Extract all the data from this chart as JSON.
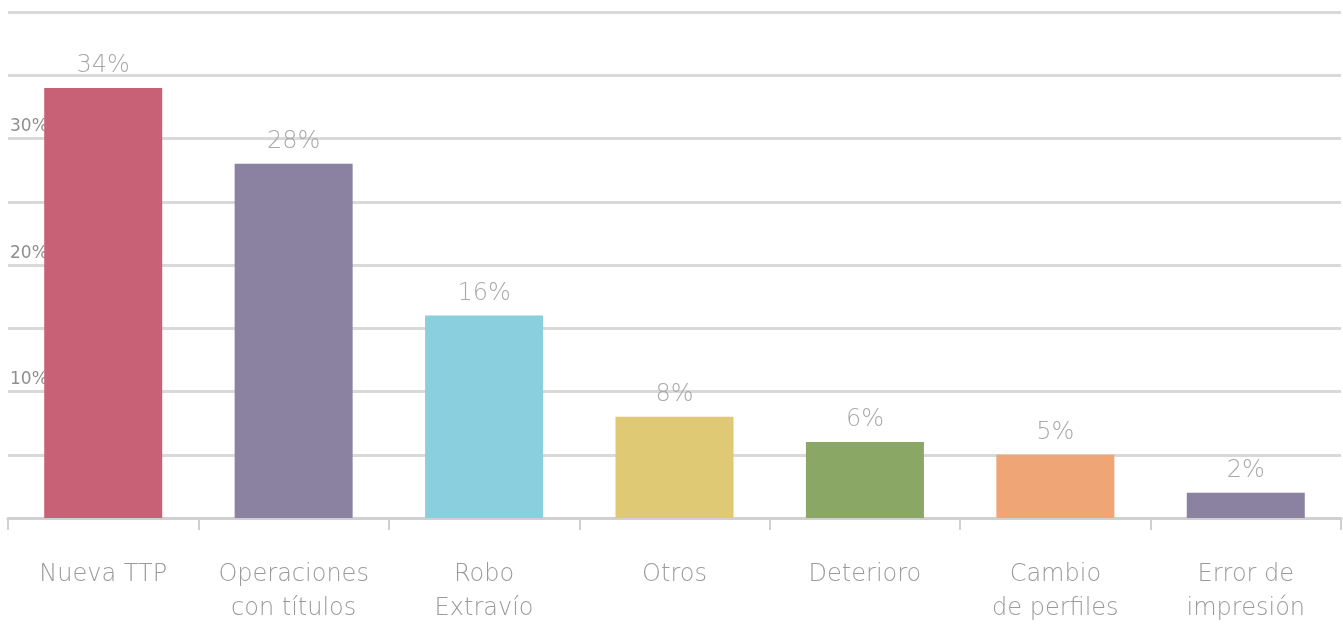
{
  "chart_data": {
    "type": "bar",
    "categories": [
      "Nueva TTP",
      "Operaciones\ncon títulos",
      "Robo\nExtravío",
      "Otros",
      "Deterioro",
      "Cambio\nde perfiles",
      "Error de\nimpresión"
    ],
    "values": [
      34,
      28,
      16,
      8,
      6,
      5,
      2
    ],
    "colors": [
      "#c86176",
      "#8b82a1",
      "#8acfde",
      "#dfc975",
      "#8aa766",
      "#f0a577",
      "#8b82a1"
    ],
    "value_labels": [
      "34%",
      "28%",
      "16%",
      "8%",
      "6%",
      "5%",
      "2%"
    ],
    "ylim": [
      0,
      40
    ],
    "yticks": [
      {
        "value": 0,
        "label": null
      },
      {
        "value": 5,
        "label": null
      },
      {
        "value": 10,
        "label": "10%"
      },
      {
        "value": 15,
        "label": null
      },
      {
        "value": 20,
        "label": "20%"
      },
      {
        "value": 25,
        "label": null
      },
      {
        "value": 30,
        "label": "30%"
      },
      {
        "value": 35,
        "label": null
      },
      {
        "value": 40,
        "label": null
      }
    ],
    "grid": "y"
  }
}
